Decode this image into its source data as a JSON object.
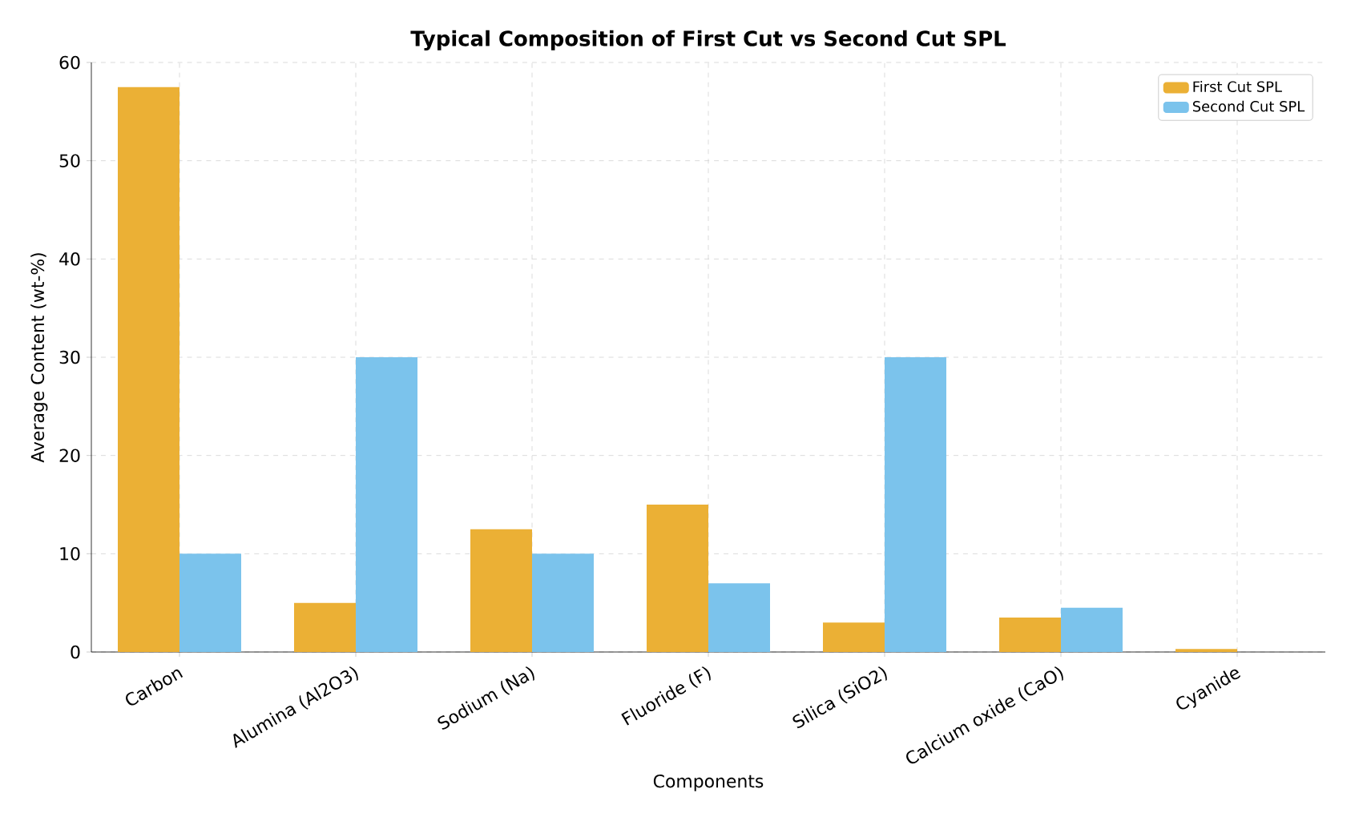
{
  "chart_data": {
    "type": "bar",
    "title": "Typical Composition of First Cut vs Second Cut SPL",
    "xlabel": "Components",
    "ylabel": "Average Content (wt-%)",
    "categories": [
      "Carbon",
      "Alumina (Al2O3)",
      "Sodium (Na)",
      "Fluoride (F)",
      "Silica (SiO2)",
      "Calcium oxide (CaO)",
      "Cyanide"
    ],
    "series": [
      {
        "name": "First Cut SPL",
        "color": "#ebb035",
        "values": [
          57.5,
          5,
          12.5,
          15,
          3,
          3.5,
          0.3
        ]
      },
      {
        "name": "Second Cut SPL",
        "color": "#7bc3ec",
        "values": [
          10,
          30,
          10,
          7,
          30,
          4.5,
          0
        ]
      }
    ],
    "ylim": [
      0,
      60
    ],
    "yticks": [
      0,
      10,
      20,
      30,
      40,
      50,
      60
    ],
    "grid": true,
    "legend": "top right"
  }
}
